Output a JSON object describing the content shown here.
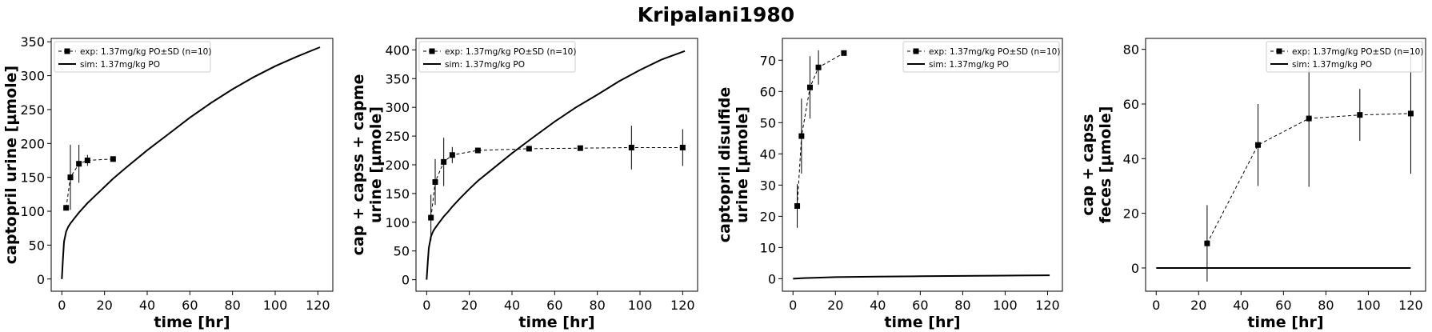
{
  "figure_title": "Kripalani1980",
  "chart_data": [
    {
      "type": "line",
      "xlabel": "time [hr]",
      "ylabel": [
        "captopril urine [µmole]"
      ],
      "xlim": [
        -5,
        127
      ],
      "ylim": [
        -18,
        355
      ],
      "xticks": [
        0,
        20,
        40,
        60,
        80,
        100,
        120
      ],
      "yticks": [
        0,
        50,
        100,
        150,
        200,
        250,
        300,
        350
      ],
      "legend_placement": "upper left",
      "series": [
        {
          "name": "exp: 1.37mg/kg PO±SD (n=10)",
          "style": "dashed-square-markers",
          "x": [
            2,
            4,
            8,
            12,
            24
          ],
          "y": [
            105,
            150,
            170,
            175,
            177
          ],
          "err": [
            0,
            48,
            28,
            8,
            4
          ]
        },
        {
          "name": "sim: 1.37mg/kg PO",
          "style": "solid",
          "x": [
            0,
            0.5,
            1,
            2,
            3,
            4,
            6,
            8,
            10,
            12,
            16,
            20,
            24,
            30,
            40,
            50,
            60,
            70,
            80,
            90,
            100,
            110,
            121
          ],
          "y": [
            0,
            30,
            55,
            70,
            77,
            82,
            90,
            98,
            105,
            112,
            124,
            136,
            148,
            164,
            190,
            214,
            238,
            260,
            280,
            298,
            314,
            328,
            342
          ]
        }
      ]
    },
    {
      "type": "line",
      "xlabel": "time [hr]",
      "ylabel": [
        "cap + capss + capme",
        "urine [µmole]"
      ],
      "xlim": [
        -5,
        127
      ],
      "ylim": [
        -20,
        420
      ],
      "xticks": [
        0,
        20,
        40,
        60,
        80,
        100,
        120
      ],
      "yticks": [
        0,
        50,
        100,
        150,
        200,
        250,
        300,
        350,
        400
      ],
      "legend_placement": "upper left",
      "series": [
        {
          "name": "exp: 1.37mg/kg PO±SD (n=10)",
          "style": "dashed-square-markers",
          "x": [
            2,
            4,
            8,
            12,
            24,
            48,
            72,
            96,
            120
          ],
          "y": [
            108,
            170,
            205,
            217,
            225,
            228,
            229,
            230,
            230
          ],
          "err": [
            40,
            40,
            42,
            14,
            4,
            4,
            4,
            38,
            32
          ]
        },
        {
          "name": "sim: 1.37mg/kg PO",
          "style": "solid",
          "x": [
            0,
            0.5,
            1,
            2,
            3,
            4,
            6,
            8,
            10,
            12,
            16,
            20,
            24,
            30,
            40,
            50,
            60,
            70,
            80,
            90,
            100,
            110,
            121
          ],
          "y": [
            0,
            30,
            55,
            75,
            84,
            90,
            100,
            110,
            118,
            127,
            143,
            158,
            172,
            190,
            220,
            248,
            275,
            300,
            322,
            345,
            365,
            383,
            398
          ]
        }
      ]
    },
    {
      "type": "line",
      "xlabel": "time [hr]",
      "ylabel": [
        "captopril disulfide",
        "urine [µmole]"
      ],
      "xlim": [
        -5,
        127
      ],
      "ylim": [
        -4,
        77
      ],
      "xticks": [
        0,
        20,
        40,
        60,
        80,
        100,
        120
      ],
      "yticks": [
        0,
        10,
        20,
        30,
        40,
        50,
        60,
        70
      ],
      "legend_placement": "upper right",
      "series": [
        {
          "name": "exp: 1.37mg/kg PO±SD (n=10)",
          "style": "dashed-square-markers",
          "x": [
            2,
            4,
            8,
            12,
            24
          ],
          "y": [
            23.3,
            45.7,
            61.3,
            67.7,
            72.3
          ],
          "err": [
            7,
            12,
            10,
            5.5,
            0.5
          ]
        },
        {
          "name": "sim: 1.37mg/kg PO",
          "style": "solid",
          "x": [
            0,
            5,
            10,
            20,
            40,
            60,
            80,
            100,
            121
          ],
          "y": [
            0,
            0.2,
            0.3,
            0.5,
            0.7,
            0.8,
            0.9,
            1.0,
            1.1
          ]
        }
      ]
    },
    {
      "type": "line",
      "xlabel": "time [hr]",
      "ylabel": [
        "cap + capss",
        "feces [µmole]"
      ],
      "xlim": [
        -5,
        127
      ],
      "ylim": [
        -8.5,
        84
      ],
      "xticks": [
        0,
        20,
        40,
        60,
        80,
        100,
        120
      ],
      "yticks": [
        0,
        20,
        40,
        60,
        80
      ],
      "legend_placement": "upper right",
      "series": [
        {
          "name": "exp: 1.37mg/kg PO±SD (n=10)",
          "style": "dashed-square-markers",
          "x": [
            24,
            48,
            72,
            96,
            120
          ],
          "y": [
            9,
            45,
            54.7,
            56,
            56.5
          ],
          "err": [
            14,
            15,
            25,
            9.5,
            22
          ]
        },
        {
          "name": "sim: 1.37mg/kg PO",
          "style": "solid",
          "x": [
            0,
            120
          ],
          "y": [
            0,
            0
          ]
        }
      ]
    }
  ]
}
